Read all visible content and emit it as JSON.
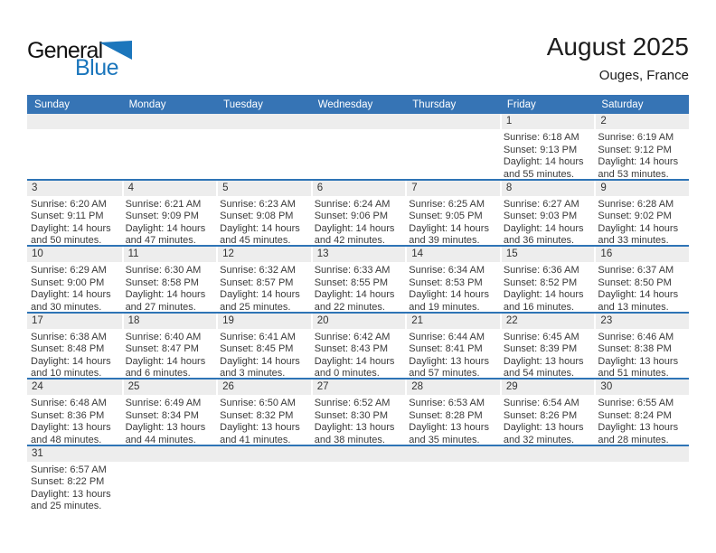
{
  "logo": {
    "general": "General",
    "blue": "Blue"
  },
  "header": {
    "title": "August 2025",
    "location": "Ouges, France"
  },
  "weekday_headers": [
    "Sunday",
    "Monday",
    "Tuesday",
    "Wednesday",
    "Thursday",
    "Friday",
    "Saturday"
  ],
  "labels": {
    "sunrise": "Sunrise:",
    "sunset": "Sunset:",
    "daylight": "Daylight:",
    "hours_word": "hours",
    "and_word": "and",
    "minutes_word": "minutes."
  },
  "colors": {
    "header_bg": "#3674b5",
    "separator": "#2e74b6",
    "band_bg": "#ededed",
    "logo_blue": "#1b76bc"
  },
  "weeks": [
    [
      null,
      null,
      null,
      null,
      null,
      {
        "date": 1,
        "sunrise": "6:18 AM",
        "sunset": "9:13 PM",
        "daylight_hours": 14,
        "daylight_minutes": 55
      },
      {
        "date": 2,
        "sunrise": "6:19 AM",
        "sunset": "9:12 PM",
        "daylight_hours": 14,
        "daylight_minutes": 53
      }
    ],
    [
      {
        "date": 3,
        "sunrise": "6:20 AM",
        "sunset": "9:11 PM",
        "daylight_hours": 14,
        "daylight_minutes": 50
      },
      {
        "date": 4,
        "sunrise": "6:21 AM",
        "sunset": "9:09 PM",
        "daylight_hours": 14,
        "daylight_minutes": 47
      },
      {
        "date": 5,
        "sunrise": "6:23 AM",
        "sunset": "9:08 PM",
        "daylight_hours": 14,
        "daylight_minutes": 45
      },
      {
        "date": 6,
        "sunrise": "6:24 AM",
        "sunset": "9:06 PM",
        "daylight_hours": 14,
        "daylight_minutes": 42
      },
      {
        "date": 7,
        "sunrise": "6:25 AM",
        "sunset": "9:05 PM",
        "daylight_hours": 14,
        "daylight_minutes": 39
      },
      {
        "date": 8,
        "sunrise": "6:27 AM",
        "sunset": "9:03 PM",
        "daylight_hours": 14,
        "daylight_minutes": 36
      },
      {
        "date": 9,
        "sunrise": "6:28 AM",
        "sunset": "9:02 PM",
        "daylight_hours": 14,
        "daylight_minutes": 33
      }
    ],
    [
      {
        "date": 10,
        "sunrise": "6:29 AM",
        "sunset": "9:00 PM",
        "daylight_hours": 14,
        "daylight_minutes": 30
      },
      {
        "date": 11,
        "sunrise": "6:30 AM",
        "sunset": "8:58 PM",
        "daylight_hours": 14,
        "daylight_minutes": 27
      },
      {
        "date": 12,
        "sunrise": "6:32 AM",
        "sunset": "8:57 PM",
        "daylight_hours": 14,
        "daylight_minutes": 25
      },
      {
        "date": 13,
        "sunrise": "6:33 AM",
        "sunset": "8:55 PM",
        "daylight_hours": 14,
        "daylight_minutes": 22
      },
      {
        "date": 14,
        "sunrise": "6:34 AM",
        "sunset": "8:53 PM",
        "daylight_hours": 14,
        "daylight_minutes": 19
      },
      {
        "date": 15,
        "sunrise": "6:36 AM",
        "sunset": "8:52 PM",
        "daylight_hours": 14,
        "daylight_minutes": 16
      },
      {
        "date": 16,
        "sunrise": "6:37 AM",
        "sunset": "8:50 PM",
        "daylight_hours": 14,
        "daylight_minutes": 13
      }
    ],
    [
      {
        "date": 17,
        "sunrise": "6:38 AM",
        "sunset": "8:48 PM",
        "daylight_hours": 14,
        "daylight_minutes": 10
      },
      {
        "date": 18,
        "sunrise": "6:40 AM",
        "sunset": "8:47 PM",
        "daylight_hours": 14,
        "daylight_minutes": 6
      },
      {
        "date": 19,
        "sunrise": "6:41 AM",
        "sunset": "8:45 PM",
        "daylight_hours": 14,
        "daylight_minutes": 3
      },
      {
        "date": 20,
        "sunrise": "6:42 AM",
        "sunset": "8:43 PM",
        "daylight_hours": 14,
        "daylight_minutes": 0
      },
      {
        "date": 21,
        "sunrise": "6:44 AM",
        "sunset": "8:41 PM",
        "daylight_hours": 13,
        "daylight_minutes": 57
      },
      {
        "date": 22,
        "sunrise": "6:45 AM",
        "sunset": "8:39 PM",
        "daylight_hours": 13,
        "daylight_minutes": 54
      },
      {
        "date": 23,
        "sunrise": "6:46 AM",
        "sunset": "8:38 PM",
        "daylight_hours": 13,
        "daylight_minutes": 51
      }
    ],
    [
      {
        "date": 24,
        "sunrise": "6:48 AM",
        "sunset": "8:36 PM",
        "daylight_hours": 13,
        "daylight_minutes": 48
      },
      {
        "date": 25,
        "sunrise": "6:49 AM",
        "sunset": "8:34 PM",
        "daylight_hours": 13,
        "daylight_minutes": 44
      },
      {
        "date": 26,
        "sunrise": "6:50 AM",
        "sunset": "8:32 PM",
        "daylight_hours": 13,
        "daylight_minutes": 41
      },
      {
        "date": 27,
        "sunrise": "6:52 AM",
        "sunset": "8:30 PM",
        "daylight_hours": 13,
        "daylight_minutes": 38
      },
      {
        "date": 28,
        "sunrise": "6:53 AM",
        "sunset": "8:28 PM",
        "daylight_hours": 13,
        "daylight_minutes": 35
      },
      {
        "date": 29,
        "sunrise": "6:54 AM",
        "sunset": "8:26 PM",
        "daylight_hours": 13,
        "daylight_minutes": 32
      },
      {
        "date": 30,
        "sunrise": "6:55 AM",
        "sunset": "8:24 PM",
        "daylight_hours": 13,
        "daylight_minutes": 28
      }
    ],
    [
      {
        "date": 31,
        "sunrise": "6:57 AM",
        "sunset": "8:22 PM",
        "daylight_hours": 13,
        "daylight_minutes": 25
      },
      null,
      null,
      null,
      null,
      null,
      null
    ]
  ]
}
